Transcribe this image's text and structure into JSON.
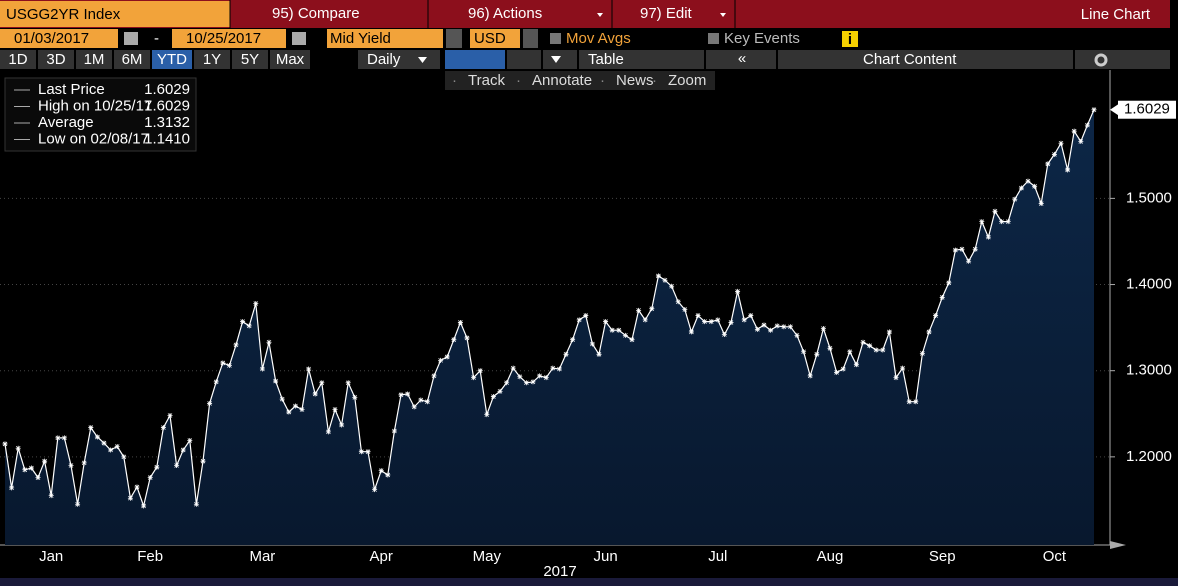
{
  "ui": {
    "security": "USGG2YR Index",
    "compare": "95) Compare",
    "actions": "96) Actions",
    "edit": "97) Edit",
    "chart_kind": "Line Chart",
    "start_date": "01/03/2017",
    "dash": "-",
    "end_date": "10/25/2017",
    "field": "Mid Yield",
    "currency": "USD",
    "mov_avgs": "Mov Avgs",
    "key_events": "Key Events",
    "info": "i",
    "periods": [
      "1D",
      "3D",
      "1M",
      "6M",
      "YTD",
      "1Y",
      "5Y",
      "Max"
    ],
    "active_period": "YTD",
    "frequency": "Daily",
    "table": "Table",
    "chart_content": "Chart Content",
    "tools": [
      "Track",
      "Annotate",
      "News",
      "Zoom"
    ],
    "legend": [
      {
        "label": "Last Price",
        "value": "1.6029"
      },
      {
        "label": "High on 10/25/17",
        "value": "1.6029"
      },
      {
        "label": "Average",
        "value": "1.3132"
      },
      {
        "label": "Low on 02/08/17",
        "value": "1.1410"
      }
    ],
    "last_label": "1.6029"
  },
  "chart_data": {
    "type": "area",
    "x_label": "2017",
    "color": "#ffffff",
    "fill": "#0d2747",
    "categories": [
      null,
      null,
      null,
      null,
      null,
      null,
      null,
      "Jan",
      null,
      null,
      null,
      null,
      null,
      null,
      null,
      null,
      null,
      null,
      null,
      null,
      null,
      null,
      "Feb",
      null,
      null,
      null,
      null,
      null,
      null,
      null,
      null,
      null,
      null,
      null,
      null,
      null,
      null,
      null,
      null,
      "Mar",
      null,
      null,
      null,
      null,
      null,
      null,
      null,
      null,
      null,
      null,
      null,
      null,
      null,
      null,
      null,
      null,
      null,
      "Apr",
      null,
      null,
      null,
      null,
      null,
      null,
      null,
      null,
      null,
      null,
      null,
      null,
      null,
      null,
      null,
      "May",
      null,
      null,
      null,
      null,
      null,
      null,
      null,
      null,
      null,
      null,
      null,
      null,
      null,
      null,
      null,
      null,
      null,
      "Jun",
      null,
      null,
      null,
      null,
      null,
      null,
      null,
      null,
      null,
      null,
      null,
      null,
      null,
      null,
      null,
      null,
      "Jul",
      null,
      null,
      null,
      null,
      null,
      null,
      null,
      null,
      null,
      null,
      null,
      null,
      null,
      null,
      null,
      null,
      "Aug",
      null,
      null,
      null,
      null,
      null,
      null,
      null,
      null,
      null,
      null,
      null,
      null,
      null,
      null,
      null,
      null,
      "Sep",
      null,
      null,
      null,
      null,
      null,
      null,
      null,
      null,
      null,
      null,
      null,
      null,
      null,
      null,
      null,
      null,
      "Oct",
      null,
      null,
      null,
      null,
      null,
      null
    ],
    "values": [
      1.215,
      1.164,
      1.21,
      1.185,
      1.187,
      1.176,
      1.195,
      1.155,
      1.222,
      1.222,
      1.19,
      1.145,
      1.193,
      1.234,
      1.223,
      1.216,
      1.208,
      1.212,
      1.2,
      1.152,
      1.165,
      1.143,
      1.176,
      1.188,
      1.234,
      1.248,
      1.19,
      1.208,
      1.219,
      1.145,
      1.195,
      1.262,
      1.287,
      1.309,
      1.306,
      1.33,
      1.357,
      1.352,
      1.378,
      1.302,
      1.333,
      1.288,
      1.267,
      1.252,
      1.259,
      1.255,
      1.302,
      1.273,
      1.286,
      1.229,
      1.255,
      1.237,
      1.286,
      1.269,
      1.206,
      1.206,
      1.162,
      1.184,
      1.179,
      1.23,
      1.272,
      1.273,
      1.258,
      1.266,
      1.264,
      1.294,
      1.312,
      1.316,
      1.336,
      1.356,
      1.338,
      1.292,
      1.3,
      1.249,
      1.27,
      1.276,
      1.286,
      1.303,
      1.293,
      1.286,
      1.287,
      1.294,
      1.292,
      1.303,
      1.302,
      1.319,
      1.336,
      1.359,
      1.364,
      1.331,
      1.319,
      1.357,
      1.347,
      1.347,
      1.341,
      1.336,
      1.37,
      1.359,
      1.372,
      1.41,
      1.405,
      1.398,
      1.38,
      1.371,
      1.345,
      1.364,
      1.357,
      1.357,
      1.359,
      1.342,
      1.356,
      1.392,
      1.359,
      1.364,
      1.348,
      1.353,
      1.347,
      1.352,
      1.351,
      1.351,
      1.341,
      1.322,
      1.294,
      1.319,
      1.349,
      1.326,
      1.298,
      1.302,
      1.322,
      1.307,
      1.333,
      1.329,
      1.324,
      1.324,
      1.345,
      1.292,
      1.303,
      1.264,
      1.264,
      1.32,
      1.345,
      1.364,
      1.385,
      1.402,
      1.44,
      1.441,
      1.427,
      1.441,
      1.473,
      1.455,
      1.485,
      1.473,
      1.473,
      1.499,
      1.512,
      1.52,
      1.514,
      1.494,
      1.54,
      1.551,
      1.564,
      1.533,
      1.578,
      1.566,
      1.585,
      1.6029
    ],
    "ylim": [
      1.0977,
      1.649
    ],
    "yticks": [
      {
        "value": 1.2,
        "label": "1.2000"
      },
      {
        "value": 1.3,
        "label": "1.3000"
      },
      {
        "value": 1.4,
        "label": "1.4000"
      },
      {
        "value": 1.5,
        "label": "1.5000"
      }
    ]
  }
}
